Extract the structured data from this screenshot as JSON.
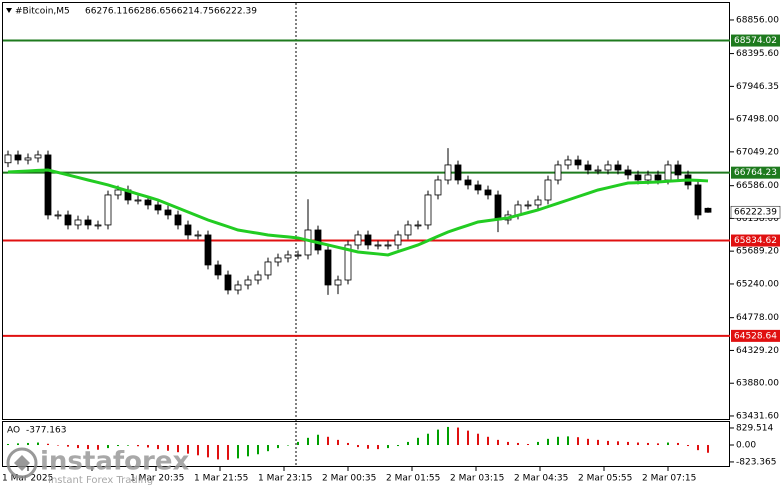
{
  "chart_data": {
    "type": "candlestick",
    "title": "#Bitcoin,M5",
    "open": [
      66900,
      67007,
      66938,
      66966,
      67007,
      66185,
      66185,
      66048,
      66116,
      66048,
      66048,
      66459,
      66527,
      66390,
      66390,
      66322,
      66253,
      66185,
      66048,
      65911,
      65911,
      65500,
      65363,
      65157,
      65226,
      65294,
      65363,
      65541,
      65596,
      65637,
      65637,
      65979,
      65705,
      65226,
      65294,
      65774,
      65911,
      65774,
      65774,
      65774,
      65911,
      66048,
      66048,
      66459,
      66664,
      66870,
      66664,
      66596,
      66527,
      66459,
      66116,
      66185,
      66322,
      66322,
      66390,
      66664,
      66870,
      66938,
      66870,
      66801,
      66801,
      66870,
      66801,
      66733,
      66664,
      66733,
      66664,
      66870,
      66733,
      66596,
      66276.11
    ],
    "high": [
      67067,
      67067,
      67026,
      67067,
      67067,
      66245,
      66245,
      66176,
      66176,
      66108,
      66519,
      66587,
      66587,
      66450,
      66450,
      66382,
      66313,
      66245,
      66108,
      65971,
      65971,
      65560,
      65423,
      65286,
      65354,
      65423,
      65601,
      65656,
      65697,
      65697,
      66400,
      66039,
      65765,
      65354,
      65834,
      65971,
      65971,
      65834,
      65834,
      65971,
      66108,
      66108,
      66519,
      66724,
      67100,
      66930,
      66724,
      66656,
      66587,
      66519,
      66245,
      66382,
      66382,
      66450,
      66724,
      66930,
      66998,
      66998,
      66930,
      66861,
      66930,
      66930,
      66861,
      66793,
      66793,
      66793,
      66930,
      66930,
      66793,
      66656,
      66286.65
    ],
    "low": [
      66840,
      66878,
      66878,
      66906,
      66125,
      66125,
      65988,
      65988,
      65988,
      65988,
      65988,
      66399,
      66330,
      66330,
      66262,
      66193,
      66125,
      65988,
      65851,
      65851,
      65440,
      65303,
      65097,
      65097,
      65166,
      65234,
      65303,
      65481,
      65536,
      65577,
      65577,
      65645,
      65090,
      65100,
      65234,
      65714,
      65714,
      65714,
      65714,
      65714,
      65851,
      65988,
      65988,
      66399,
      66604,
      66604,
      66536,
      66467,
      66399,
      65950,
      66056,
      66125,
      66262,
      66262,
      66330,
      66604,
      66810,
      66810,
      66741,
      66741,
      66741,
      66741,
      66673,
      66604,
      66604,
      66604,
      66604,
      66673,
      66536,
      66125,
      66214.75
    ],
    "close": [
      67007,
      66938,
      66966,
      67007,
      66185,
      66185,
      66048,
      66116,
      66048,
      66048,
      66459,
      66527,
      66390,
      66390,
      66322,
      66253,
      66185,
      66048,
      65911,
      65911,
      65500,
      65363,
      65157,
      65226,
      65294,
      65363,
      65541,
      65596,
      65637,
      65637,
      65979,
      65705,
      65226,
      65294,
      65774,
      65911,
      65774,
      65774,
      65774,
      65911,
      66048,
      66048,
      66459,
      66664,
      66870,
      66664,
      66596,
      66527,
      66459,
      66116,
      66185,
      66322,
      66322,
      66390,
      66664,
      66870,
      66938,
      66870,
      66801,
      66801,
      66870,
      66801,
      66733,
      66664,
      66733,
      66664,
      66870,
      66733,
      66596,
      66185,
      66222.39
    ],
    "color_up": "#ffffff",
    "color_down": "#000000",
    "ylim": [
      63390,
      69061
    ],
    "yticks": [
      {
        "value": 68856,
        "label": "68856.00"
      },
      {
        "value": 68395.6,
        "label": "68395.60"
      },
      67946.35,
      {
        "value": 67498,
        "label": "67498.00"
      },
      {
        "value": 67049.2,
        "label": "67049.20"
      },
      {
        "value": 66586,
        "label": "66586.00"
      },
      {
        "value": 66138,
        "label": "66138.00"
      },
      {
        "value": 65689.2,
        "label": "65689.20"
      },
      {
        "value": 65240,
        "label": "65240.00"
      },
      {
        "value": 64778,
        "label": "64778.00"
      },
      {
        "value": 64329.2,
        "label": "64329.20"
      },
      {
        "value": 63880,
        "label": "63880.00"
      },
      {
        "value": 63431.6,
        "label": "63431.60"
      }
    ],
    "levels": [
      {
        "value": 68574.02,
        "color": "#1e7a1e"
      },
      {
        "value": 66764.23,
        "color": "#1e7a1e"
      },
      {
        "value": 65834.62,
        "color": "#e01010"
      },
      {
        "value": 64528.64,
        "color": "#e01010"
      }
    ],
    "ma": {
      "color": "#22cc22",
      "values": [
        66774,
        66781,
        66788,
        66795,
        66801,
        66767,
        66733,
        66699,
        66664,
        66630,
        66596,
        66555,
        66514,
        66472,
        66431,
        66390,
        66335,
        66280,
        66226,
        66171,
        66116,
        66070,
        66025,
        65979,
        65956,
        65934,
        65911,
        65897,
        65884,
        65870,
        65838,
        65806,
        65774,
        65742,
        65710,
        65678,
        65664,
        65651,
        65637,
        65683,
        65728,
        65774,
        65833,
        65893,
        65952,
        65998,
        66043,
        66089,
        66107,
        66126,
        66144,
        66180,
        66217,
        66253,
        66299,
        66344,
        66390,
        66436,
        66481,
        66527,
        66559,
        66591,
        66623,
        66628,
        66632,
        66637,
        66646,
        66655,
        66664,
        66658,
        66651
      ]
    },
    "time_labels": [
      "1 Mar 2025",
      null,
      "1 Mar 20:35",
      "1 Mar 21:55",
      "1 Mar 23:15",
      "2 Mar 00:35",
      "2 Mar 01:55",
      "2 Mar 03:15",
      "2 Mar 04:35",
      "2 Mar 05:55",
      "2 Mar 07:15"
    ],
    "indicator": {
      "name": "AO",
      "color_up": "#00a000",
      "color_down": "#e01010",
      "values": [
        50,
        80,
        100,
        120,
        60,
        -20,
        -80,
        -150,
        -200,
        -230,
        -150,
        -50,
        -30,
        -60,
        -120,
        -200,
        -280,
        -350,
        -420,
        -500,
        -600,
        -700,
        -720,
        -650,
        -550,
        -450,
        -300,
        -150,
        0,
        150,
        350,
        500,
        400,
        250,
        100,
        -100,
        -180,
        -200,
        -150,
        -50,
        150,
        350,
        550,
        750,
        880,
        850,
        700,
        550,
        400,
        250,
        150,
        100,
        50,
        150,
        300,
        400,
        420,
        380,
        300,
        250,
        200,
        180,
        150,
        120,
        100,
        80,
        120,
        100,
        -50,
        -250,
        -377.163
      ],
      "ylim": [
        -1070,
        1120
      ],
      "yticks": [
        829.514,
        {
          "value": 0,
          "label": "0.00"
        },
        -823.365
      ]
    },
    "watermark": {
      "name": "instaforex",
      "tagline": "Instant Forex Trading"
    }
  }
}
